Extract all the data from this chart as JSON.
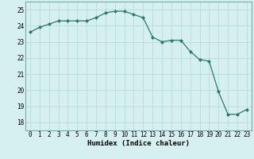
{
  "x": [
    0,
    1,
    2,
    3,
    4,
    5,
    6,
    7,
    8,
    9,
    10,
    11,
    12,
    13,
    14,
    15,
    16,
    17,
    18,
    19,
    20,
    21,
    22,
    23
  ],
  "y": [
    23.6,
    23.9,
    24.1,
    24.3,
    24.3,
    24.3,
    24.3,
    24.5,
    24.8,
    24.9,
    24.9,
    24.7,
    24.5,
    23.3,
    23.0,
    23.1,
    23.1,
    22.4,
    21.9,
    21.8,
    19.9,
    18.5,
    18.5,
    18.8
  ],
  "xlabel": "Humidex (Indice chaleur)",
  "xlim": [
    -0.5,
    23.5
  ],
  "ylim": [
    17.5,
    25.5
  ],
  "yticks": [
    18,
    19,
    20,
    21,
    22,
    23,
    24,
    25
  ],
  "xticks": [
    0,
    1,
    2,
    3,
    4,
    5,
    6,
    7,
    8,
    9,
    10,
    11,
    12,
    13,
    14,
    15,
    16,
    17,
    18,
    19,
    20,
    21,
    22,
    23
  ],
  "line_color": "#2d7a68",
  "marker_color": "#2d7a68",
  "bg_color": "#d6f0ef",
  "grid_color": "#b0d8d4",
  "label_fontsize": 6.5,
  "tick_fontsize": 5.5
}
